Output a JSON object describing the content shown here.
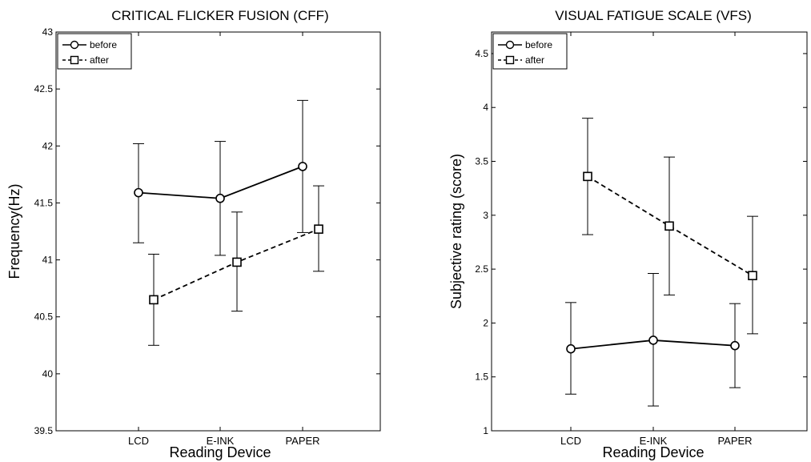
{
  "chart_data": [
    {
      "type": "line",
      "title": "CRITICAL FLICKER FUSION (CFF)",
      "xlabel": "Reading Device",
      "ylabel": "Frequency(Hz)",
      "categories": [
        "LCD",
        "E-INK",
        "PAPER"
      ],
      "ylim": [
        39.5,
        43
      ],
      "yticks": [
        "39.5",
        "40",
        "40.5",
        "41",
        "41.5",
        "42",
        "42.5",
        "43"
      ],
      "grid": false,
      "legend_position": "top-left",
      "series": [
        {
          "name": "before",
          "marker": "circle",
          "line_style": "solid",
          "values": [
            41.59,
            41.54,
            41.82
          ],
          "error_low": [
            41.15,
            41.04,
            41.24
          ],
          "error_high": [
            42.02,
            42.04,
            42.4
          ]
        },
        {
          "name": "after",
          "marker": "square",
          "line_style": "dashed",
          "values": [
            40.65,
            40.98,
            41.27
          ],
          "error_low": [
            40.25,
            40.55,
            40.9
          ],
          "error_high": [
            41.05,
            41.42,
            41.65
          ]
        }
      ]
    },
    {
      "type": "line",
      "title": "VISUAL FATIGUE SCALE (VFS)",
      "xlabel": "Reading Device",
      "ylabel": "Subjective rating (score)",
      "categories": [
        "LCD",
        "E-INK",
        "PAPER"
      ],
      "ylim": [
        1,
        4.7
      ],
      "yticks": [
        "1",
        "1.5",
        "2",
        "2.5",
        "3",
        "3.5",
        "4",
        "4.5"
      ],
      "grid": false,
      "legend_position": "top-left",
      "series": [
        {
          "name": "before",
          "marker": "circle",
          "line_style": "solid",
          "values": [
            1.76,
            1.84,
            1.79
          ],
          "error_low": [
            1.34,
            1.23,
            1.4
          ],
          "error_high": [
            2.19,
            2.46,
            2.18
          ]
        },
        {
          "name": "after",
          "marker": "square",
          "line_style": "dashed",
          "values": [
            3.36,
            2.9,
            2.44
          ],
          "error_low": [
            2.82,
            2.26,
            1.9
          ],
          "error_high": [
            3.9,
            3.54,
            2.99
          ]
        }
      ]
    }
  ]
}
